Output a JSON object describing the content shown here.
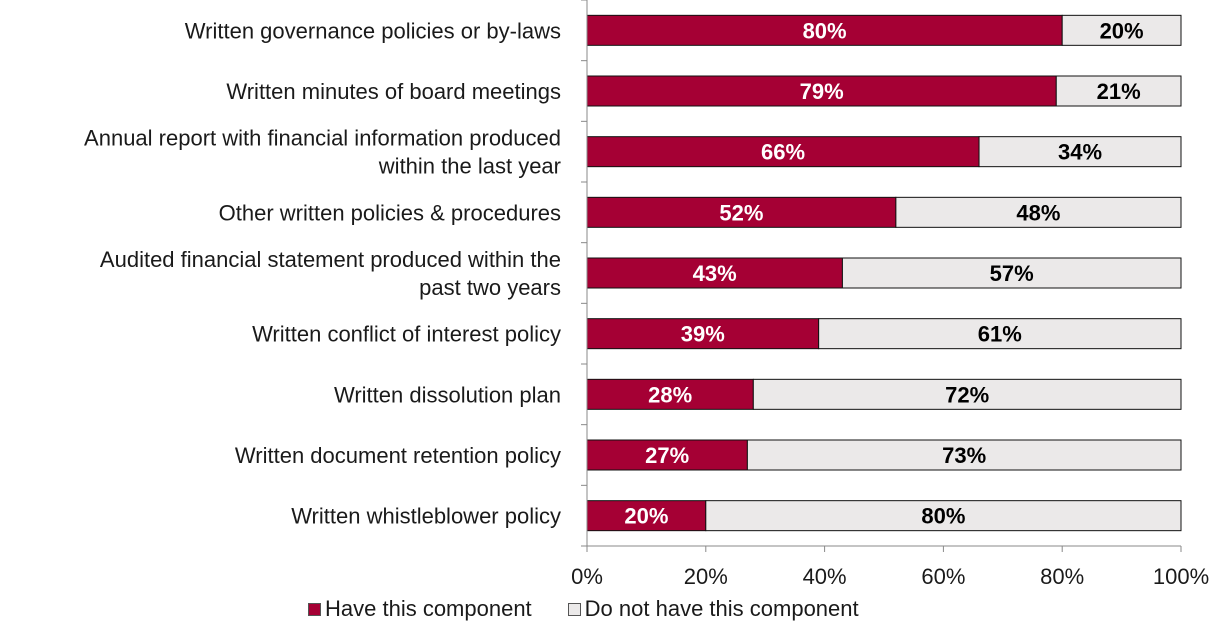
{
  "chart_data": {
    "type": "bar",
    "orientation": "horizontal",
    "stacked": true,
    "categories": [
      [
        "Written governance policies or by-laws"
      ],
      [
        "Written minutes of board meetings"
      ],
      [
        "Annual report with financial information produced",
        "within the last year"
      ],
      [
        "Other written policies & procedures"
      ],
      [
        "Audited financial statement produced within the",
        "past two years"
      ],
      [
        "Written conflict of interest policy"
      ],
      [
        "Written dissolution plan"
      ],
      [
        "Written document retention policy"
      ],
      [
        "Written whistleblower policy"
      ]
    ],
    "series": [
      {
        "name": "Have this component",
        "color": "#a50034",
        "values": [
          80,
          79,
          66,
          52,
          43,
          39,
          28,
          27,
          20
        ],
        "labels": [
          "80%",
          "79%",
          "66%",
          "52%",
          "43%",
          "39%",
          "28%",
          "27%",
          "20%"
        ]
      },
      {
        "name": "Do not have this component",
        "color": "#ebe9e9",
        "values": [
          20,
          21,
          34,
          48,
          57,
          61,
          72,
          73,
          80
        ],
        "labels": [
          "20%",
          "21%",
          "34%",
          "48%",
          "57%",
          "61%",
          "72%",
          "73%",
          "80%"
        ]
      }
    ],
    "xlim": [
      0,
      100
    ],
    "xticks": [
      "0%",
      "20%",
      "40%",
      "60%",
      "80%",
      "100%"
    ],
    "grid": false,
    "legend_position": "bottom"
  }
}
